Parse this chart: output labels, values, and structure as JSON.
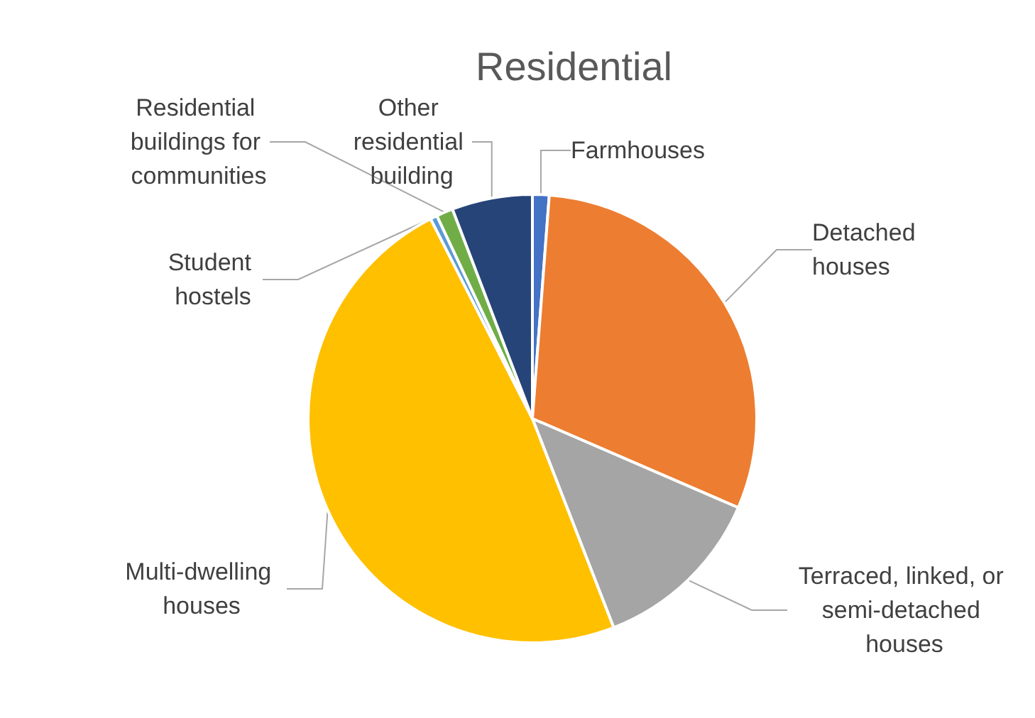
{
  "chart_data": {
    "type": "pie",
    "title": "Residential",
    "categories": [
      "Farmhouses",
      "Detached houses",
      "Terraced, linked, or semi-detached houses",
      "Multi-dwelling houses",
      "Student hostels",
      "Residential buildings for communities",
      "Other residential building"
    ],
    "values": [
      1.2,
      30.3,
      12.6,
      48.4,
      0.5,
      1.2,
      5.8
    ],
    "colors": [
      "#4472c4",
      "#ed7d31",
      "#a5a5a5",
      "#ffc000",
      "#5b9bd5",
      "#70ad47",
      "#264478"
    ],
    "legend": false
  }
}
